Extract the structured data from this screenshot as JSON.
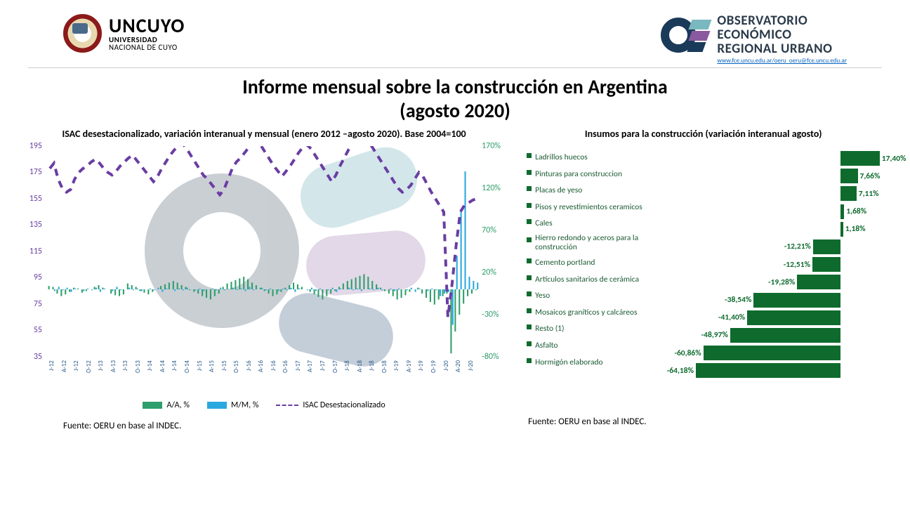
{
  "header": {
    "uncuyo": {
      "main": "UNCUYO",
      "sub1": "UNIVERSIDAD",
      "sub2": "NACIONAL DE CUYO"
    },
    "oeru": {
      "l1": "OBSERVATORIO",
      "l2": "ECONÓMICO",
      "l3": "REGIONAL URBANO",
      "link1": "www.fce.uncu.edu.ar/oeru",
      "link2": "oeru@fce.uncu.edu.ar"
    }
  },
  "title": {
    "l1": "Informe mensual sobre la construcción en Argentina",
    "l2": "(agosto 2020)"
  },
  "left_chart": {
    "title": "ISAC desestacionalizado, variación interanual y mensual (enero 2012 –agosto 2020). Base 2004=100",
    "y_left": {
      "min": 35,
      "max": 195,
      "ticks": [
        35,
        55,
        75,
        95,
        115,
        135,
        155,
        175,
        195
      ],
      "color": "#6a3da3"
    },
    "y_right": {
      "min": -80,
      "max": 170,
      "ticks": [
        -80,
        -30,
        20,
        70,
        120,
        170
      ],
      "color": "#2e9e6a"
    },
    "x_labels": [
      "J-12",
      "A-12",
      "J-12",
      "O-12",
      "J-13",
      "A-13",
      "J-13",
      "O-13",
      "J-14",
      "A-14",
      "J-14",
      "O-14",
      "J-15",
      "A-15",
      "J-15",
      "O-15",
      "J-16",
      "A-16",
      "J-16",
      "O-16",
      "J-17",
      "A-17",
      "J-17",
      "O-17",
      "J-18",
      "A-18",
      "J-18",
      "O-18",
      "J-19",
      "A-19",
      "J-19",
      "O-19",
      "J-20",
      "A-20",
      "J-20"
    ],
    "series": {
      "aa": {
        "label": "A/A, %",
        "color": "#2e9e6a",
        "values": [
          4,
          3,
          -5,
          -8,
          -6,
          -3,
          2,
          1,
          -4,
          -2,
          0,
          3,
          5,
          2,
          0,
          -5,
          -7,
          -8,
          -6,
          7,
          5,
          3,
          -2,
          -4,
          -6,
          -3,
          0,
          4,
          6,
          8,
          10,
          8,
          5,
          3,
          -1,
          -3,
          -5,
          -8,
          -10,
          -12,
          -8,
          -5,
          3,
          7,
          9,
          11,
          13,
          15,
          12,
          8,
          5,
          2,
          -2,
          -5,
          -8,
          -6,
          -3,
          2,
          5,
          8,
          6,
          3,
          0,
          -3,
          -6,
          -9,
          -12,
          -8,
          -5,
          -2,
          3,
          7,
          10,
          12,
          14,
          16,
          18,
          15,
          10,
          6,
          2,
          -2,
          -5,
          -8,
          -12,
          -10,
          -7,
          -3,
          0,
          2,
          -5,
          -10,
          -15,
          -18,
          -12,
          -8,
          -5,
          -76,
          -50,
          -30,
          -17,
          -8,
          -5,
          -1
        ]
      },
      "mm": {
        "label": "M/M, %",
        "color": "#2aa8e0",
        "values": [
          0,
          -2,
          3,
          -1,
          2,
          -3,
          1,
          0,
          -2,
          1,
          -1,
          2,
          -3,
          1,
          0,
          -2,
          3,
          -1,
          0,
          2,
          -1,
          1,
          -2,
          0,
          1,
          -1,
          2,
          -3,
          1,
          0,
          -2,
          1,
          -1,
          2,
          0,
          -1,
          1,
          -2,
          0,
          1,
          -1,
          2,
          -1,
          0,
          2,
          -1,
          1,
          -2,
          3,
          -1,
          0,
          2,
          -1,
          1,
          0,
          -2,
          1,
          -1,
          2,
          -3,
          1,
          0,
          -1,
          2,
          -2,
          1,
          0,
          -1,
          2,
          -3,
          1,
          0,
          2,
          -1,
          1,
          -2,
          0,
          1,
          -1,
          2,
          -1,
          0,
          1,
          -2,
          1,
          0,
          -1,
          2,
          -3,
          1,
          0,
          -2,
          1,
          -1,
          -8,
          -5,
          -3,
          -42,
          40,
          95,
          140,
          15,
          10,
          8
        ]
      },
      "isac": {
        "label": "ISAC Desestacionalizado",
        "color": "#6a3da3",
        "dash": true,
        "values": [
          178,
          182,
          170,
          163,
          160,
          162,
          170,
          175,
          178,
          180,
          183,
          185,
          182,
          178,
          175,
          173,
          176,
          180,
          183,
          186,
          188,
          184,
          180,
          176,
          172,
          168,
          172,
          178,
          183,
          188,
          192,
          195,
          197,
          193,
          188,
          183,
          178,
          173,
          170,
          166,
          162,
          158,
          162,
          170,
          178,
          183,
          186,
          190,
          194,
          197,
          198,
          195,
          190,
          185,
          180,
          176,
          172,
          176,
          180,
          185,
          190,
          194,
          196,
          193,
          188,
          183,
          178,
          173,
          168,
          173,
          180,
          186,
          192,
          196,
          198,
          200,
          202,
          198,
          193,
          188,
          183,
          178,
          173,
          168,
          163,
          160,
          162,
          165,
          170,
          175,
          172,
          166,
          160,
          155,
          150,
          145,
          65,
          90,
          120,
          145,
          150,
          152,
          154,
          155
        ]
      }
    },
    "legend": [
      "A/A, %",
      "M/M, %",
      "ISAC Desestacionalizado"
    ],
    "source": "Fuente: OERU en base al INDEC."
  },
  "right_chart": {
    "title": "Insumos para la construcción (variación interanual agosto)",
    "color": "#0e6b2d",
    "items": [
      {
        "label": "Ladrillos huecos",
        "value": 17.4,
        "text": "17,40%"
      },
      {
        "label": "Pinturas para construccion",
        "value": 7.66,
        "text": "7,66%"
      },
      {
        "label": "Placas de yeso",
        "value": 7.11,
        "text": "7,11%"
      },
      {
        "label": "Pisos y revestimientos ceramicos",
        "value": 1.68,
        "text": "1,68%"
      },
      {
        "label": "Cales",
        "value": 1.18,
        "text": "1,18%"
      },
      {
        "label": "Hierro redondo y aceros para la construcción",
        "value": -12.21,
        "text": "-12,21%",
        "twoLine": true
      },
      {
        "label": "Cemento portland",
        "value": -12.51,
        "text": "-12,51%"
      },
      {
        "label": "Artículos sanitarios de cerámica",
        "value": -19.28,
        "text": "-19,28%"
      },
      {
        "label": "Yeso",
        "value": -38.54,
        "text": "-38,54%"
      },
      {
        "label": "Mosaicos graníticos y calcáreos",
        "value": -41.4,
        "text": "-41,40%"
      },
      {
        "label": "Resto (1)",
        "value": -48.97,
        "text": "-48,97%"
      },
      {
        "label": "Asfalto",
        "value": -60.86,
        "text": "-60,86%"
      },
      {
        "label": "Hormigón elaborado",
        "value": -64.18,
        "text": "-64,18%"
      }
    ],
    "range": {
      "min": -70,
      "max": 20
    },
    "source": "Fuente: OERU en base al INDEC."
  }
}
